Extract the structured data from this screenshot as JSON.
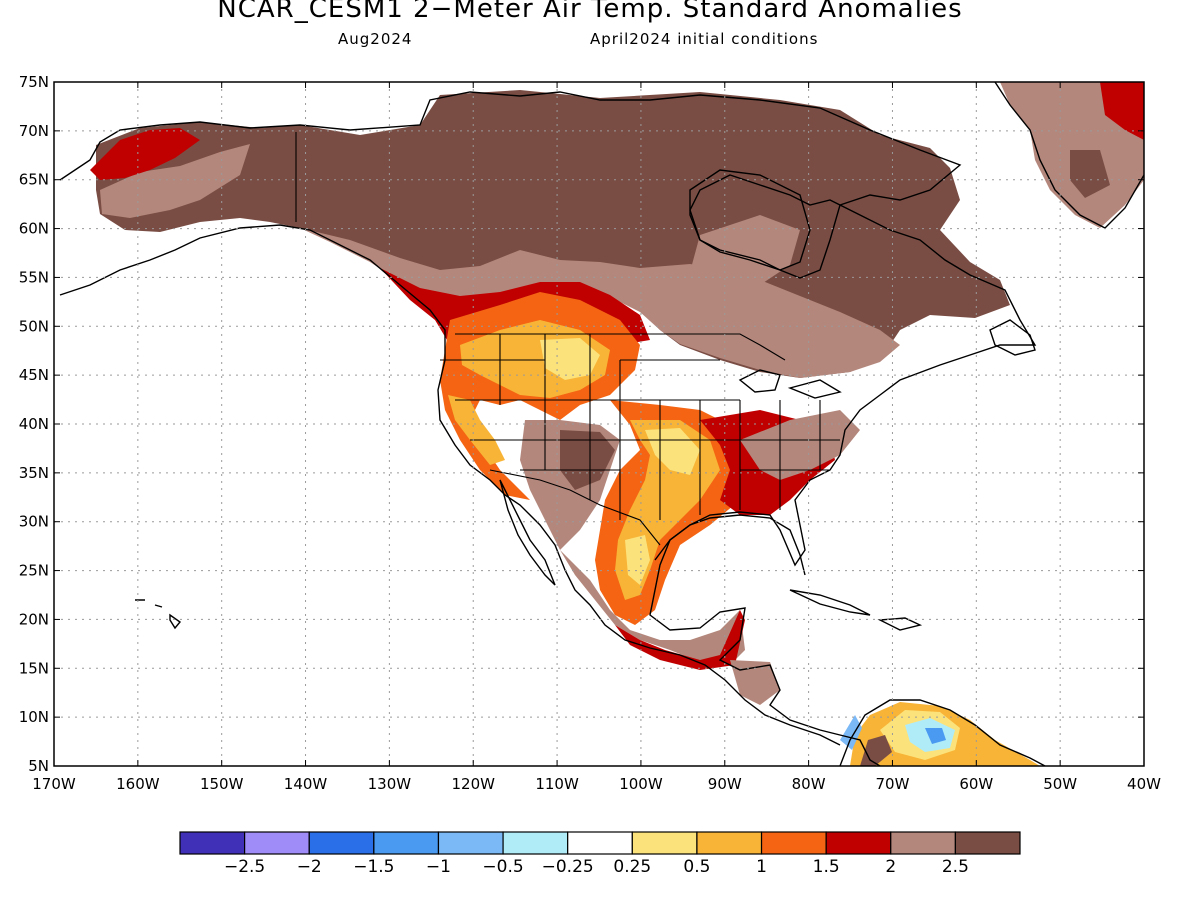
{
  "header": {
    "title": "NCAR_CESM1 2−Meter Air Temp. Standard Anomalies",
    "valid_month": "Aug2024",
    "init_text": "April2024 initial conditions"
  },
  "map": {
    "lat_labels": [
      "75N",
      "70N",
      "65N",
      "60N",
      "55N",
      "50N",
      "45N",
      "40N",
      "35N",
      "30N",
      "25N",
      "20N",
      "15N",
      "10N",
      "5N"
    ],
    "lon_labels": [
      "170W",
      "160W",
      "150W",
      "140W",
      "130W",
      "120W",
      "110W",
      "100W",
      "90W",
      "80W",
      "70W",
      "60W",
      "50W",
      "40W"
    ],
    "background_color": "#ffffff",
    "land_outline_color": "#000000"
  },
  "colorbar": {
    "colors": [
      "#4030b8",
      "#a08cf8",
      "#2a6ee8",
      "#4a9af2",
      "#7ab8f6",
      "#b0ecf8",
      "#ffffff",
      "#fce27a",
      "#f8b436",
      "#f46412",
      "#c00000",
      "#b4877c",
      "#7a4d44"
    ],
    "labels": [
      "−2.5",
      "−2",
      "−1.5",
      "−1",
      "−0.5",
      "−0.25",
      "0.25",
      "0.5",
      "1",
      "1.5",
      "2",
      "2.5"
    ]
  },
  "legend_fill": {
    "c_dark_brown": "#7a4d44",
    "c_light_brown": "#b4877c",
    "c_red": "#c00000",
    "c_orange": "#f46412",
    "c_light_orange": "#f8b436",
    "c_yellow": "#fce27a",
    "c_light_blue": "#b0ecf8",
    "c_mid_blue": "#7ab8f6",
    "c_blue": "#4a9af2"
  }
}
